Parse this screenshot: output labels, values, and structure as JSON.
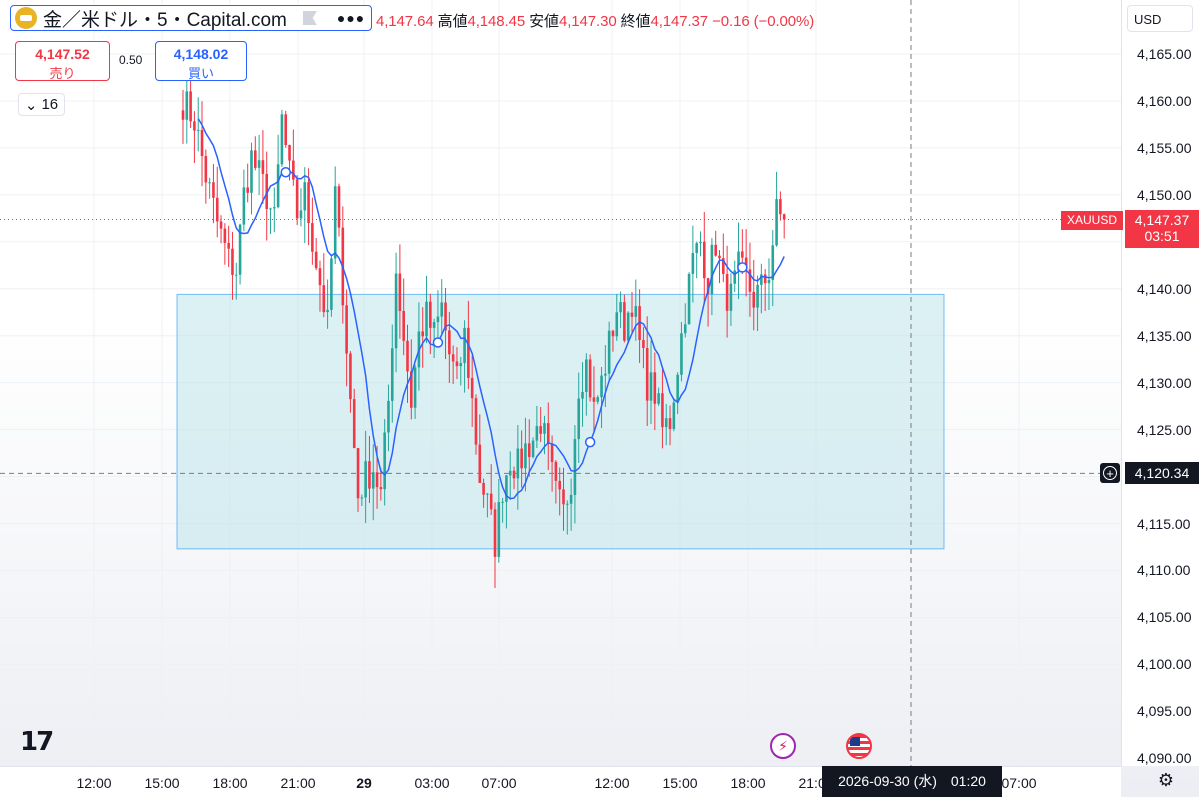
{
  "header": {
    "symbol_title": "金／米ドル・5・Capital.com",
    "open": "4,147.64",
    "high_label": "高値",
    "high": "4,148.45",
    "low_label": "安値",
    "low": "4,147.30",
    "close_label": "終値",
    "close": "4,147.37",
    "change": "−0.16 (−0.00%)"
  },
  "trade": {
    "sell_price": "4,147.52",
    "sell_label": "売り",
    "spread": "0.50",
    "buy_price": "4,148.02",
    "buy_label": "買い",
    "indicator_count": "16"
  },
  "axis": {
    "currency": "USD",
    "symbol_tag": "XAUUSD",
    "last_price": "4,147.37",
    "countdown": "03:51",
    "crosshair_price": "4,120.34",
    "crosshair_date": "2026-09-30 (水)　01:20",
    "y_ticks": [
      "4,165.00",
      "4,160.00",
      "4,155.00",
      "4,150.00",
      "4,140.00",
      "4,135.00",
      "4,130.00",
      "4,125.00",
      "4,115.00",
      "4,110.00",
      "4,105.00",
      "4,100.00",
      "4,095.00",
      "4,090.00"
    ],
    "x_ticks": [
      {
        "label": "12:00",
        "bold": false
      },
      {
        "label": "15:00",
        "bold": false
      },
      {
        "label": "18:00",
        "bold": false
      },
      {
        "label": "21:00",
        "bold": false
      },
      {
        "label": "29",
        "bold": true
      },
      {
        "label": "03:00",
        "bold": false
      },
      {
        "label": "07:00",
        "bold": false
      },
      {
        "label": "12:00",
        "bold": false
      },
      {
        "label": "15:00",
        "bold": false
      },
      {
        "label": "18:00",
        "bold": false
      },
      {
        "label": "21:00",
        "bold": false
      },
      {
        "label": "07:00",
        "bold": false
      }
    ]
  },
  "colors": {
    "up": "#26a69a",
    "down": "#f23645",
    "ma": "#2962ff",
    "box_fill": "#b2dfe6",
    "box_border": "#2196f3"
  },
  "icons": {
    "logo": "tradingview-logo-icon",
    "event1": "lightning-event-icon",
    "event2": "us-flag-event-icon",
    "settings": "gear-icon"
  },
  "chart_data": {
    "type": "candlestick",
    "ylim": [
      4088,
      4168
    ],
    "y_tick_values": [
      4165,
      4160,
      4155,
      4150,
      4145,
      4140,
      4135,
      4130,
      4125,
      4120,
      4115,
      4110,
      4105,
      4100,
      4095,
      4090
    ],
    "last_price": 4147.37,
    "crosshair_price": 4120.34,
    "box_zone": {
      "x_start": "17:20",
      "x_end": "Sep 29 23:00",
      "y_low": 4112.3,
      "y_high": 4139.4
    },
    "anchors": [
      {
        "t": 0,
        "price": 4160
      },
      {
        "t": 3,
        "price": 4158
      },
      {
        "t": 6,
        "price": 4152
      },
      {
        "t": 9,
        "price": 4147
      },
      {
        "t": 12,
        "price": 4143
      },
      {
        "t": 14,
        "price": 4142
      },
      {
        "t": 16,
        "price": 4150
      },
      {
        "t": 18,
        "price": 4154
      },
      {
        "t": 22,
        "price": 4150
      },
      {
        "t": 24,
        "price": 4147
      },
      {
        "t": 26,
        "price": 4158
      },
      {
        "t": 28,
        "price": 4152
      },
      {
        "t": 30,
        "price": 4148
      },
      {
        "t": 32,
        "price": 4150
      },
      {
        "t": 35,
        "price": 4143
      },
      {
        "t": 38,
        "price": 4136
      },
      {
        "t": 40,
        "price": 4150
      },
      {
        "t": 42,
        "price": 4140
      },
      {
        "t": 44,
        "price": 4128
      },
      {
        "t": 46,
        "price": 4118
      },
      {
        "t": 48,
        "price": 4120
      },
      {
        "t": 50,
        "price": 4121
      },
      {
        "t": 52,
        "price": 4118
      },
      {
        "t": 54,
        "price": 4128
      },
      {
        "t": 56,
        "price": 4142
      },
      {
        "t": 58,
        "price": 4135
      },
      {
        "t": 60,
        "price": 4128
      },
      {
        "t": 62,
        "price": 4135
      },
      {
        "t": 64,
        "price": 4137
      },
      {
        "t": 66,
        "price": 4135
      },
      {
        "t": 68,
        "price": 4138
      },
      {
        "t": 70,
        "price": 4133
      },
      {
        "t": 72,
        "price": 4130
      },
      {
        "t": 74,
        "price": 4135
      },
      {
        "t": 76,
        "price": 4128
      },
      {
        "t": 78,
        "price": 4120
      },
      {
        "t": 80,
        "price": 4117
      },
      {
        "t": 82,
        "price": 4113
      },
      {
        "t": 84,
        "price": 4119
      },
      {
        "t": 86,
        "price": 4122
      },
      {
        "t": 88,
        "price": 4121
      },
      {
        "t": 90,
        "price": 4123
      },
      {
        "t": 92,
        "price": 4124
      },
      {
        "t": 94,
        "price": 4126
      },
      {
        "t": 96,
        "price": 4122
      },
      {
        "t": 98,
        "price": 4118
      },
      {
        "t": 100,
        "price": 4116
      },
      {
        "t": 102,
        "price": 4120
      },
      {
        "t": 104,
        "price": 4130
      },
      {
        "t": 106,
        "price": 4132
      },
      {
        "t": 108,
        "price": 4127
      },
      {
        "t": 110,
        "price": 4130
      },
      {
        "t": 112,
        "price": 4134
      },
      {
        "t": 114,
        "price": 4138
      },
      {
        "t": 116,
        "price": 4136
      },
      {
        "t": 118,
        "price": 4139
      },
      {
        "t": 120,
        "price": 4134
      },
      {
        "t": 122,
        "price": 4130
      },
      {
        "t": 124,
        "price": 4129
      },
      {
        "t": 126,
        "price": 4125
      },
      {
        "t": 128,
        "price": 4126
      },
      {
        "t": 130,
        "price": 4132
      },
      {
        "t": 132,
        "price": 4138
      },
      {
        "t": 134,
        "price": 4143
      },
      {
        "t": 136,
        "price": 4145
      },
      {
        "t": 138,
        "price": 4141
      },
      {
        "t": 140,
        "price": 4145
      },
      {
        "t": 142,
        "price": 4140
      },
      {
        "t": 144,
        "price": 4139
      },
      {
        "t": 146,
        "price": 4142
      },
      {
        "t": 148,
        "price": 4141
      },
      {
        "t": 150,
        "price": 4139
      },
      {
        "t": 152,
        "price": 4140
      },
      {
        "t": 154,
        "price": 4142
      },
      {
        "t": 156,
        "price": 4148
      },
      {
        "t": 158,
        "price": 4147.4
      }
    ]
  }
}
